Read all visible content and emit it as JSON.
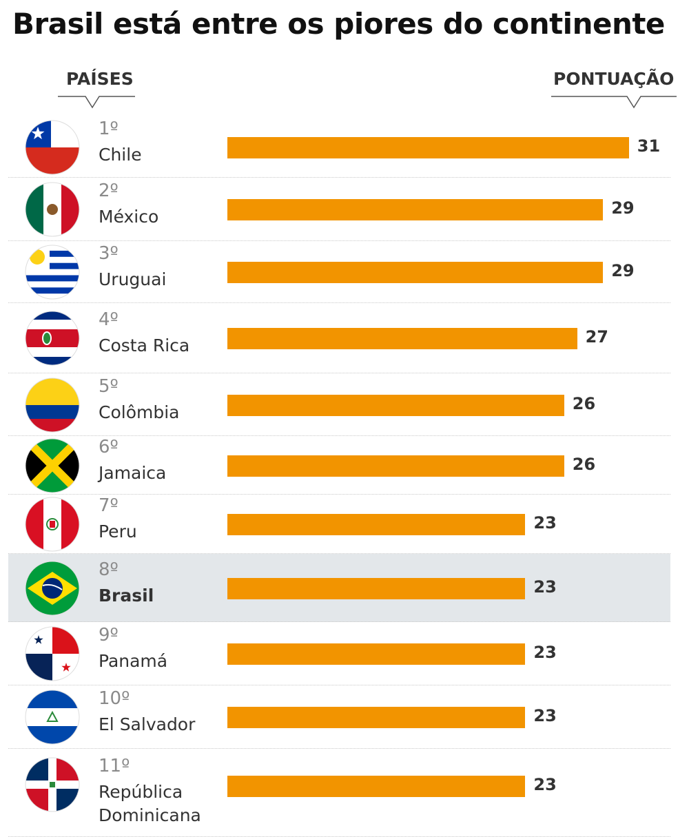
{
  "title": "Brasil está entre os piores do continente",
  "chart_data": {
    "type": "bar",
    "orientation": "horizontal",
    "title": "Brasil está entre os piores do continente",
    "column_headers": {
      "left": "PAÍSES",
      "right": "PONTUAÇÃO"
    },
    "categories": [
      "Chile",
      "México",
      "Uruguai",
      "Costa Rica",
      "Colômbia",
      "Jamaica",
      "Peru",
      "Brasil",
      "Panamá",
      "El Salvador",
      "República Dominicana"
    ],
    "ranks": [
      "1º",
      "2º",
      "3º",
      "4º",
      "5º",
      "6º",
      "7º",
      "8º",
      "9º",
      "10º",
      "11º"
    ],
    "values": [
      31,
      29,
      29,
      27,
      26,
      26,
      23,
      23,
      23,
      23,
      23
    ],
    "highlight": "Brasil",
    "bar_color": "#f29400",
    "highlight_color": "#e3e7ea",
    "flags": [
      "chile",
      "mexico",
      "uruguay",
      "costa-rica",
      "colombia",
      "jamaica",
      "peru",
      "brazil",
      "panama",
      "el-salvador",
      "dominican-republic"
    ],
    "grid": false
  }
}
